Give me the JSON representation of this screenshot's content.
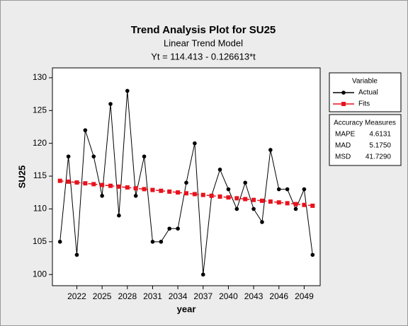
{
  "chart_data": {
    "type": "line",
    "title": "Trend Analysis Plot for SU25",
    "subtitle": "Linear Trend Model",
    "equation": "Yt = 114.413 - 0.126613*t",
    "x_label": "year",
    "y_label": "SU25",
    "x": [
      2020,
      2021,
      2022,
      2023,
      2024,
      2025,
      2026,
      2027,
      2028,
      2029,
      2030,
      2031,
      2032,
      2033,
      2034,
      2035,
      2036,
      2037,
      2038,
      2039,
      2040,
      2041,
      2042,
      2043,
      2044,
      2045,
      2046,
      2047,
      2048,
      2049,
      2050
    ],
    "series": [
      {
        "name": "Actual",
        "color": "#000000",
        "marker": "circle",
        "values": [
          105,
          118,
          103,
          122,
          118,
          112,
          126,
          109,
          128,
          112,
          118,
          105,
          105,
          107,
          107,
          114,
          120,
          100,
          112,
          116,
          113,
          110,
          114,
          110,
          108,
          119,
          113,
          113,
          110,
          113,
          103
        ]
      },
      {
        "name": "Fits",
        "color": "#e8121d",
        "marker": "square",
        "values": [
          114.286,
          114.16,
          114.033,
          113.907,
          113.78,
          113.653,
          113.527,
          113.4,
          113.273,
          113.147,
          113.02,
          112.894,
          112.767,
          112.64,
          112.514,
          112.387,
          112.261,
          112.134,
          112.007,
          111.881,
          111.754,
          111.628,
          111.501,
          111.374,
          111.248,
          111.121,
          110.994,
          110.868,
          110.741,
          110.615,
          110.488
        ]
      }
    ],
    "xlim": [
      2019.1,
      2050.9
    ],
    "xticks": [
      2022,
      2025,
      2028,
      2031,
      2034,
      2037,
      2040,
      2043,
      2046,
      2049
    ],
    "ylim": [
      98.3,
      131.5
    ],
    "yticks": [
      100,
      105,
      110,
      115,
      120,
      125,
      130
    ],
    "legend_title": "Variable",
    "accuracy": {
      "title": "Accuracy Measures",
      "rows": [
        {
          "name": "MAPE",
          "value": 4.6131
        },
        {
          "name": "MAD",
          "value": {
            "value": 5.175,
            "label": "5.1750"
          }
        },
        {
          "name": "MSD",
          "value": {
            "value": 41.729,
            "label": "41.7290"
          }
        }
      ]
    }
  }
}
